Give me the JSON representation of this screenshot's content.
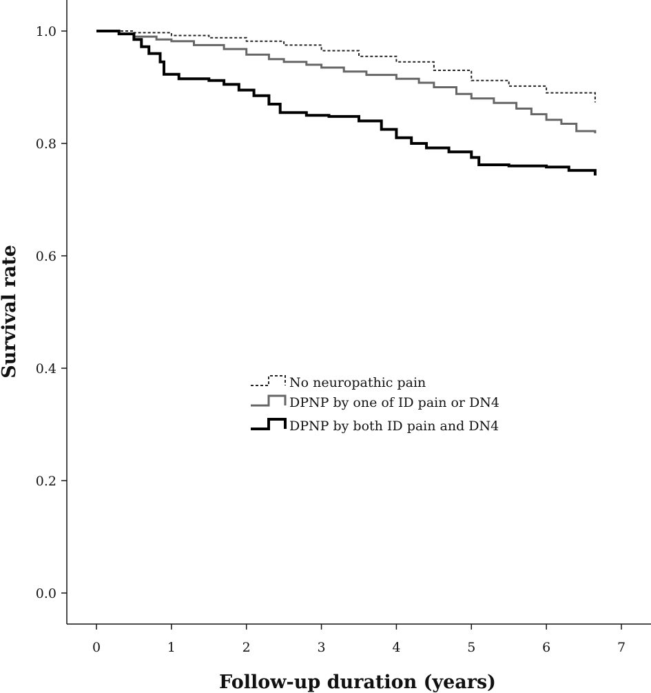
{
  "chart_data": {
    "type": "line",
    "title": "",
    "xlabel": "Follow-up duration (years)",
    "ylabel": "Survival rate",
    "xlim": [
      0,
      7
    ],
    "ylim": [
      0,
      1
    ],
    "xticks": [
      "0",
      "1",
      "2",
      "3",
      "4",
      "5",
      "6",
      "7"
    ],
    "yticks": [
      "0.0",
      "0.2",
      "0.4",
      "0.6",
      "0.8",
      "1.0"
    ],
    "legend_position": "center",
    "series": [
      {
        "name": "No neuropathic pain",
        "style": "dashed",
        "color": "#222222",
        "points": [
          [
            0,
            1.0
          ],
          [
            0.5,
            0.997
          ],
          [
            1.0,
            0.992
          ],
          [
            1.5,
            0.988
          ],
          [
            2.0,
            0.982
          ],
          [
            2.5,
            0.975
          ],
          [
            3.0,
            0.965
          ],
          [
            3.5,
            0.955
          ],
          [
            4.0,
            0.945
          ],
          [
            4.5,
            0.93
          ],
          [
            5.0,
            0.912
          ],
          [
            5.5,
            0.902
          ],
          [
            6.0,
            0.89
          ],
          [
            6.65,
            0.873
          ]
        ]
      },
      {
        "name": "DPNP by one of ID pain or DN4",
        "style": "solid",
        "color": "#666666",
        "points": [
          [
            0,
            1.0
          ],
          [
            0.3,
            0.995
          ],
          [
            0.5,
            0.99
          ],
          [
            0.8,
            0.985
          ],
          [
            1.0,
            0.982
          ],
          [
            1.3,
            0.975
          ],
          [
            1.7,
            0.968
          ],
          [
            2.0,
            0.958
          ],
          [
            2.3,
            0.95
          ],
          [
            2.5,
            0.945
          ],
          [
            2.8,
            0.94
          ],
          [
            3.0,
            0.935
          ],
          [
            3.3,
            0.928
          ],
          [
            3.6,
            0.922
          ],
          [
            4.0,
            0.915
          ],
          [
            4.3,
            0.908
          ],
          [
            4.5,
            0.9
          ],
          [
            4.8,
            0.888
          ],
          [
            5.0,
            0.88
          ],
          [
            5.3,
            0.872
          ],
          [
            5.6,
            0.862
          ],
          [
            5.8,
            0.852
          ],
          [
            6.0,
            0.842
          ],
          [
            6.2,
            0.835
          ],
          [
            6.4,
            0.822
          ],
          [
            6.65,
            0.818
          ]
        ]
      },
      {
        "name": "DPNP by both ID pain and DN4",
        "style": "solid-thick",
        "color": "#000000",
        "points": [
          [
            0,
            1.0
          ],
          [
            0.3,
            0.995
          ],
          [
            0.5,
            0.985
          ],
          [
            0.6,
            0.972
          ],
          [
            0.7,
            0.96
          ],
          [
            0.85,
            0.945
          ],
          [
            0.9,
            0.923
          ],
          [
            1.1,
            0.915
          ],
          [
            1.5,
            0.912
          ],
          [
            1.7,
            0.905
          ],
          [
            1.9,
            0.895
          ],
          [
            2.1,
            0.885
          ],
          [
            2.3,
            0.87
          ],
          [
            2.45,
            0.855
          ],
          [
            2.8,
            0.85
          ],
          [
            3.1,
            0.848
          ],
          [
            3.5,
            0.84
          ],
          [
            3.8,
            0.825
          ],
          [
            4.0,
            0.81
          ],
          [
            4.2,
            0.8
          ],
          [
            4.4,
            0.792
          ],
          [
            4.7,
            0.785
          ],
          [
            5.0,
            0.775
          ],
          [
            5.1,
            0.762
          ],
          [
            5.5,
            0.76
          ],
          [
            6.0,
            0.758
          ],
          [
            6.3,
            0.752
          ],
          [
            6.65,
            0.743
          ]
        ]
      }
    ]
  }
}
